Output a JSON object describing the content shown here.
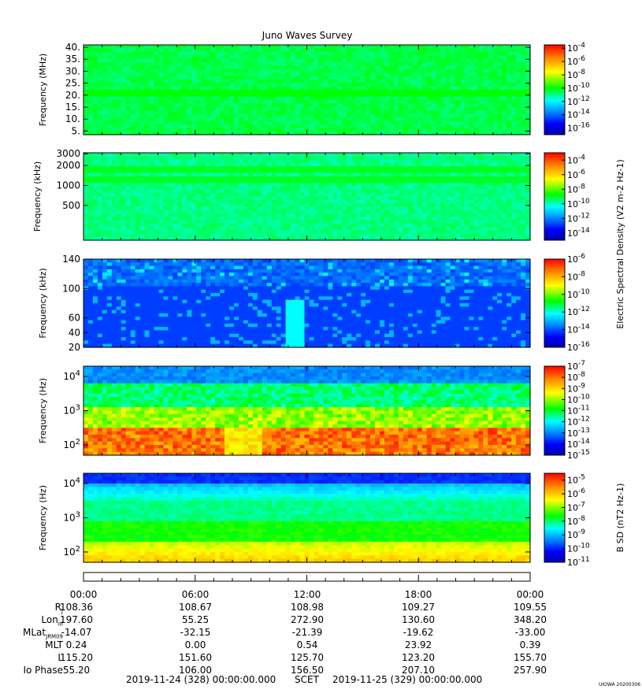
{
  "chart_data": {
    "type": "heatmap",
    "title": "Juno Waves Survey",
    "x_axis": {
      "tick_labels": [
        "00:00",
        "06:00",
        "12:00",
        "18:00",
        "00:00"
      ],
      "start": "2019-11-24 (328) 00:00:00.000",
      "end": "2019-11-25 (329) 00:00:00.000",
      "scet_label": "SCET"
    },
    "ephemeris": [
      {
        "label": "R",
        "sub": "J",
        "values": [
          "108.36",
          "108.67",
          "108.98",
          "109.27",
          "109.55"
        ]
      },
      {
        "label": "Lon",
        "sub": "III",
        "values": [
          "197.60",
          "55.25",
          "272.90",
          "130.60",
          "348.20"
        ]
      },
      {
        "label": "MLat",
        "sub": "JRM09",
        "values": [
          "-14.07",
          "-32.15",
          "-21.39",
          "-19.62",
          "-33.00"
        ]
      },
      {
        "label": "MLT",
        "sub": "",
        "values": [
          "0.24",
          "0.00",
          "0.54",
          "23.92",
          "0.39"
        ]
      },
      {
        "label": "L",
        "sub": "",
        "values": [
          "115.20",
          "151.60",
          "125.70",
          "123.20",
          "155.70"
        ]
      },
      {
        "label": "Io Phase",
        "sub": "",
        "values": [
          "55.20",
          "106.00",
          "156.50",
          "207.10",
          "257.90"
        ]
      }
    ],
    "panels": [
      {
        "ylabel": "Frequency (MHz)",
        "yscale": "linear",
        "ylim": [
          3.5,
          41
        ],
        "yticks": [
          "5.",
          "10.",
          "15.",
          "20.",
          "25.",
          "30.",
          "35.",
          "40."
        ],
        "ytick_values": [
          5,
          10,
          15,
          20,
          25,
          30,
          35,
          40
        ],
        "colorbar_ticks": [
          "10^-4",
          "10^-6",
          "10^-8",
          "10^-10",
          "10^-12",
          "10^-14",
          "10^-16"
        ],
        "colorbar_exponents": [
          -4,
          -6,
          -8,
          -10,
          -12,
          -14,
          -16
        ],
        "colorbar_range": [
          -17,
          -3.5
        ],
        "dominant_level": 0.48
      },
      {
        "ylabel": "Frequency (kHz)",
        "yscale": "log",
        "ylim": [
          150,
          3100
        ],
        "yticks": [
          "3000",
          "2000",
          "1000",
          "500"
        ],
        "ytick_values": [
          3000,
          2000,
          1000,
          500
        ],
        "colorbar_ticks": [
          "10^-4",
          "10^-6",
          "10^-8",
          "10^-10",
          "10^-12",
          "10^-14"
        ],
        "colorbar_exponents": [
          -4,
          -6,
          -8,
          -10,
          -12,
          -14
        ],
        "colorbar_range": [
          -15,
          -3
        ],
        "colorbar_label": "Electric Spectral Density (V^2 m^-2 Hz^-1)",
        "dominant_level": 0.45
      },
      {
        "ylabel": "Frequency (kHz)",
        "yscale": "linear",
        "ylim": [
          20,
          140
        ],
        "yticks": [
          "140",
          "100",
          "60",
          "40",
          "20"
        ],
        "ytick_values": [
          140,
          100,
          60,
          40,
          20
        ],
        "colorbar_ticks": [
          "10^-6",
          "10^-8",
          "10^-10",
          "10^-12",
          "10^-14",
          "10^-16"
        ],
        "colorbar_exponents": [
          -6,
          -8,
          -10,
          -12,
          -14,
          -16
        ],
        "colorbar_range": [
          -16,
          -6
        ],
        "dominant_level": 0.2
      },
      {
        "ylabel": "Frequency (Hz)",
        "yscale": "log",
        "ylim": [
          50,
          20000
        ],
        "yticks": [
          "10^4",
          "10^3",
          "10^2"
        ],
        "ytick_values": [
          10000,
          1000,
          100
        ],
        "colorbar_ticks": [
          "10^-7",
          "10^-8",
          "10^-9",
          "10^-10",
          "10^-11",
          "10^-12",
          "10^-13",
          "10^-14",
          "10^-15"
        ],
        "colorbar_exponents": [
          -7,
          -8,
          -9,
          -10,
          -11,
          -12,
          -13,
          -14,
          -15
        ],
        "colorbar_range": [
          -15,
          -7
        ],
        "dominant_level": 0.55
      },
      {
        "ylabel": "Frequency (Hz)",
        "yscale": "log",
        "ylim": [
          50,
          20000
        ],
        "yticks": [
          "10^4",
          "10^3",
          "10^2"
        ],
        "ytick_values": [
          10000,
          1000,
          100
        ],
        "colorbar_ticks": [
          "10^-5",
          "10^-6",
          "10^-7",
          "10^-8",
          "10^-9",
          "10^-10",
          "10^-11"
        ],
        "colorbar_exponents": [
          -5,
          -6,
          -7,
          -8,
          -9,
          -10,
          -11
        ],
        "colorbar_range": [
          -11,
          -4.5
        ],
        "colorbar_label": "B SD (nT^2 Hz^-1)",
        "dominant_level": 0.5
      }
    ],
    "footer_stamp": "UIOWA 20200306"
  }
}
